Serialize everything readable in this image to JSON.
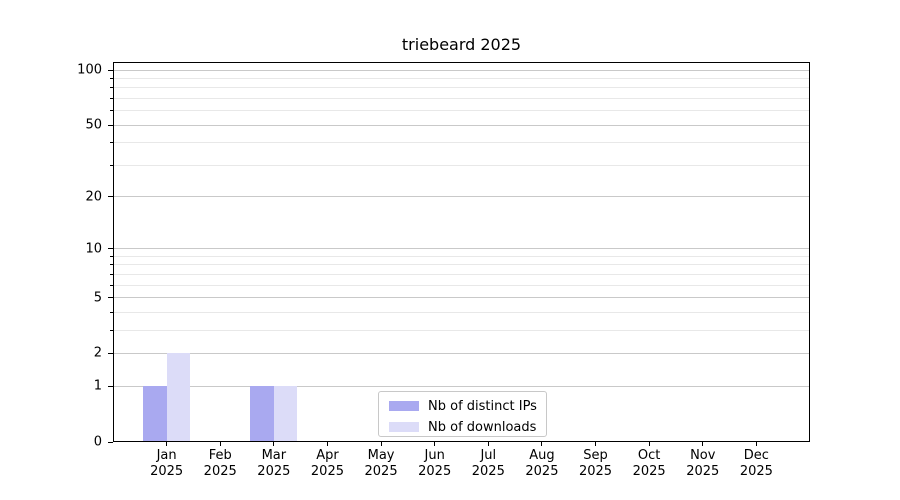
{
  "chart_data": {
    "type": "bar",
    "title": "triebeard 2025",
    "categories": [
      "Jan",
      "Feb",
      "Mar",
      "Apr",
      "May",
      "Jun",
      "Jul",
      "Aug",
      "Sep",
      "Oct",
      "Nov",
      "Dec"
    ],
    "year_label": "2025",
    "series": [
      {
        "name": "Nb of distinct IPs",
        "color": "#a9a9f0",
        "values": [
          1,
          0,
          1,
          0,
          0,
          0,
          0,
          0,
          0,
          0,
          0,
          0
        ]
      },
      {
        "name": "Nb of downloads",
        "color": "#dcdcf8",
        "values": [
          2,
          0,
          1,
          0,
          0,
          0,
          0,
          0,
          0,
          0,
          0,
          0
        ]
      }
    ],
    "yscale": "log1p",
    "ylim": [
      0,
      100
    ],
    "ytick_values": [
      0,
      1,
      2,
      5,
      10,
      20,
      50,
      100
    ],
    "ytick_labels": [
      "0",
      "1",
      "2",
      "5",
      "10",
      "20",
      "50",
      "100"
    ],
    "minor_gridline_values": [
      3,
      4,
      6,
      7,
      8,
      9,
      30,
      40,
      60,
      70,
      80,
      90
    ],
    "grid": {
      "major_color": "#c9c9c9",
      "minor_color": "#e8e8e8"
    },
    "legend_position": "lower center",
    "axis_color": "#000000"
  }
}
